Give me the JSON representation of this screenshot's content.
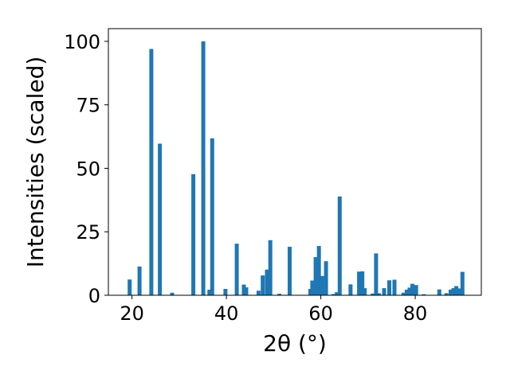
{
  "chart_data": {
    "type": "bar",
    "title": "",
    "xlabel": "2θ (°)",
    "ylabel": "Intensities (scaled)",
    "xlim": [
      15,
      94
    ],
    "ylim": [
      0,
      105
    ],
    "xticks": [
      20,
      40,
      60,
      80
    ],
    "yticks": [
      0,
      25,
      50,
      75,
      100
    ],
    "grid": false,
    "bar_color": "#1f77b4",
    "x": [
      19.5,
      21.6,
      24.1,
      25.9,
      28.5,
      33.0,
      35.1,
      36.4,
      37.0,
      39.8,
      42.2,
      43.7,
      44.2,
      46.8,
      47.7,
      48.6,
      49.3,
      51.2,
      53.4,
      57.8,
      58.2,
      58.9,
      59.6,
      60.3,
      61.1,
      62.7,
      63.4,
      64.0,
      66.3,
      68.1,
      68.8,
      69.3,
      71.0,
      71.7,
      72.3,
      73.4,
      74.5,
      75.6,
      77.5,
      78.2,
      78.8,
      79.4,
      80.2,
      81.8,
      85.1,
      86.6,
      87.5,
      88.1,
      88.7,
      89.4,
      90.0
    ],
    "values": [
      6.2,
      11.3,
      97.0,
      59.7,
      1.0,
      47.7,
      100.0,
      2.2,
      61.8,
      2.5,
      20.3,
      4.2,
      3.1,
      1.8,
      7.8,
      10.1,
      21.7,
      0.6,
      19.1,
      2.5,
      5.8,
      15.0,
      19.4,
      7.6,
      13.4,
      0.5,
      1.2,
      38.9,
      4.3,
      9.3,
      9.4,
      2.8,
      0.7,
      16.5,
      0.8,
      2.8,
      5.9,
      6.1,
      1.0,
      2.2,
      3.0,
      4.5,
      4.0,
      0.4,
      2.3,
      0.8,
      2.2,
      2.8,
      3.6,
      2.7,
      9.2
    ]
  }
}
